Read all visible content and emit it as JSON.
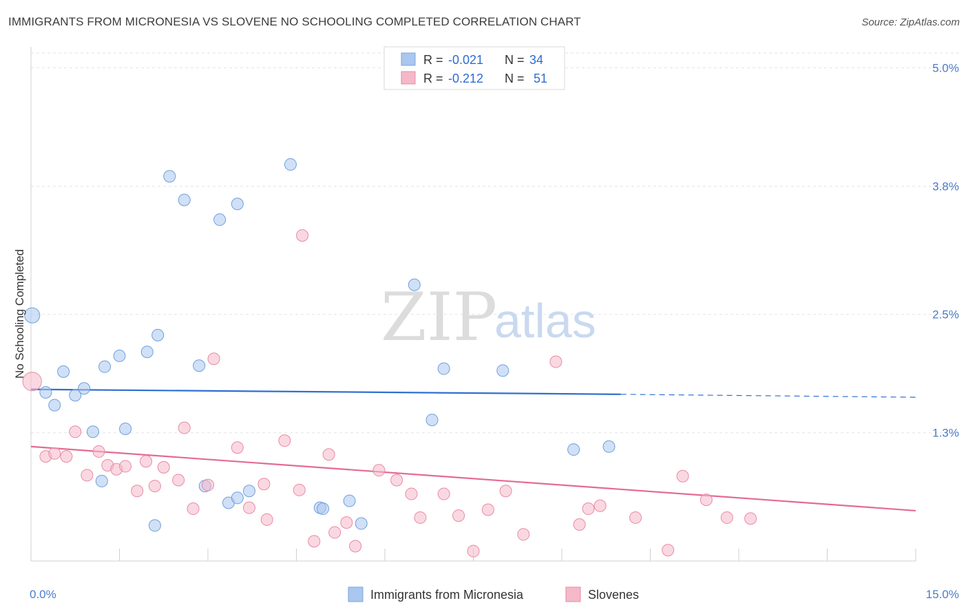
{
  "header": {
    "title": "IMMIGRANTS FROM MICRONESIA VS SLOVENE NO SCHOOLING COMPLETED CORRELATION CHART",
    "source": "Source: ZipAtlas.com"
  },
  "watermark": {
    "zip": "ZIP",
    "atlas": "atlas"
  },
  "legend": {
    "r_label": "R =",
    "n_label": "N =",
    "rows": [
      {
        "r": "-0.021",
        "n": "34",
        "color": "#a9c7ef"
      },
      {
        "r": "-0.212",
        "n": "51",
        "color": "#f5b8c9"
      }
    ]
  },
  "chart_data": {
    "type": "scatter",
    "title": "IMMIGRANTS FROM MICRONESIA VS SLOVENE NO SCHOOLING COMPLETED CORRELATION CHART",
    "xlabel": "",
    "ylabel": "No Schooling Completed",
    "xlim": [
      0,
      15
    ],
    "ylim": [
      0,
      5.15
    ],
    "x_tick_labels": [
      "0.0%",
      "15.0%"
    ],
    "y_ticks": [
      1.3,
      2.5,
      3.8,
      5.0
    ],
    "y_tick_labels": [
      "1.3%",
      "2.5%",
      "3.8%",
      "5.0%"
    ],
    "grid": "horizontal dashed",
    "legend_position": "top-center",
    "series": [
      {
        "name": "Immigrants from Micronesia",
        "color": "#a9c7ef",
        "stroke": "#6f9fdc",
        "line_color": "#2f6fd0",
        "trend": {
          "x0": 0,
          "y0": 1.74,
          "x1": 10.0,
          "y1": 1.69,
          "dash_to_x": 15,
          "dash_y": 1.66
        },
        "points": [
          [
            0.02,
            2.49
          ],
          [
            0.25,
            1.71
          ],
          [
            0.4,
            1.58
          ],
          [
            0.55,
            1.92
          ],
          [
            0.75,
            1.68
          ],
          [
            0.9,
            1.75
          ],
          [
            1.05,
            1.31
          ],
          [
            1.25,
            1.97
          ],
          [
            1.5,
            2.08
          ],
          [
            1.6,
            1.34
          ],
          [
            1.97,
            2.12
          ],
          [
            2.15,
            2.29
          ],
          [
            2.35,
            3.9
          ],
          [
            2.6,
            3.66
          ],
          [
            2.85,
            1.98
          ],
          [
            3.2,
            3.46
          ],
          [
            3.5,
            3.62
          ],
          [
            4.4,
            4.02
          ],
          [
            6.5,
            2.8
          ],
          [
            6.8,
            1.43
          ],
          [
            7.0,
            1.95
          ],
          [
            8.0,
            1.93
          ],
          [
            9.2,
            1.13
          ],
          [
            9.8,
            1.16
          ],
          [
            1.2,
            0.81
          ],
          [
            2.1,
            0.36
          ],
          [
            2.95,
            0.76
          ],
          [
            3.35,
            0.59
          ],
          [
            3.5,
            0.64
          ],
          [
            3.7,
            0.71
          ],
          [
            4.9,
            0.54
          ],
          [
            4.95,
            0.53
          ],
          [
            5.4,
            0.61
          ],
          [
            5.6,
            0.38
          ]
        ],
        "sizes": [
          1.3,
          1,
          1,
          1,
          1,
          1,
          1,
          1,
          1,
          1,
          1,
          1,
          1,
          1,
          1,
          1,
          1,
          1,
          1,
          1,
          1,
          1,
          1,
          1,
          1,
          1,
          1,
          1,
          1,
          1,
          1,
          1,
          1,
          1
        ]
      },
      {
        "name": "Slovenes",
        "color": "#f5b8c9",
        "stroke": "#e88aa6",
        "line_color": "#e46a94",
        "trend": {
          "x0": 0,
          "y0": 1.16,
          "x1": 15,
          "y1": 0.51
        },
        "points": [
          [
            0.02,
            1.82
          ],
          [
            0.25,
            1.06
          ],
          [
            0.4,
            1.09
          ],
          [
            0.6,
            1.06
          ],
          [
            0.75,
            1.31
          ],
          [
            0.95,
            0.87
          ],
          [
            1.15,
            1.11
          ],
          [
            1.3,
            0.97
          ],
          [
            1.45,
            0.93
          ],
          [
            1.6,
            0.96
          ],
          [
            1.8,
            0.71
          ],
          [
            1.95,
            1.01
          ],
          [
            2.1,
            0.76
          ],
          [
            2.25,
            0.95
          ],
          [
            2.5,
            0.82
          ],
          [
            2.6,
            1.35
          ],
          [
            2.75,
            0.53
          ],
          [
            3.0,
            0.77
          ],
          [
            3.1,
            2.05
          ],
          [
            3.5,
            1.15
          ],
          [
            3.7,
            0.54
          ],
          [
            3.95,
            0.78
          ],
          [
            4.0,
            0.42
          ],
          [
            4.3,
            1.22
          ],
          [
            4.55,
            0.72
          ],
          [
            4.6,
            3.3
          ],
          [
            4.8,
            0.2
          ],
          [
            5.05,
            1.08
          ],
          [
            5.15,
            0.29
          ],
          [
            5.35,
            0.39
          ],
          [
            5.5,
            0.15
          ],
          [
            5.9,
            0.92
          ],
          [
            6.2,
            0.82
          ],
          [
            6.45,
            0.68
          ],
          [
            6.6,
            0.44
          ],
          [
            7.0,
            0.68
          ],
          [
            7.25,
            0.46
          ],
          [
            7.5,
            0.1
          ],
          [
            7.75,
            0.52
          ],
          [
            8.05,
            0.71
          ],
          [
            8.35,
            0.27
          ],
          [
            8.9,
            2.02
          ],
          [
            9.3,
            0.37
          ],
          [
            9.45,
            0.53
          ],
          [
            9.65,
            0.56
          ],
          [
            10.25,
            0.44
          ],
          [
            10.8,
            0.11
          ],
          [
            11.05,
            0.86
          ],
          [
            11.45,
            0.62
          ],
          [
            11.8,
            0.44
          ],
          [
            12.2,
            0.43
          ]
        ],
        "sizes": [
          1.6,
          1,
          1,
          1,
          1,
          1,
          1,
          1,
          1,
          1,
          1,
          1,
          1,
          1,
          1,
          1,
          1,
          1,
          1,
          1,
          1,
          1,
          1,
          1,
          1,
          1,
          1,
          1,
          1,
          1,
          1,
          1,
          1,
          1,
          1,
          1,
          1,
          1,
          1,
          1,
          1,
          1,
          1,
          1,
          1,
          1,
          1,
          1,
          1,
          1,
          1
        ]
      }
    ]
  }
}
